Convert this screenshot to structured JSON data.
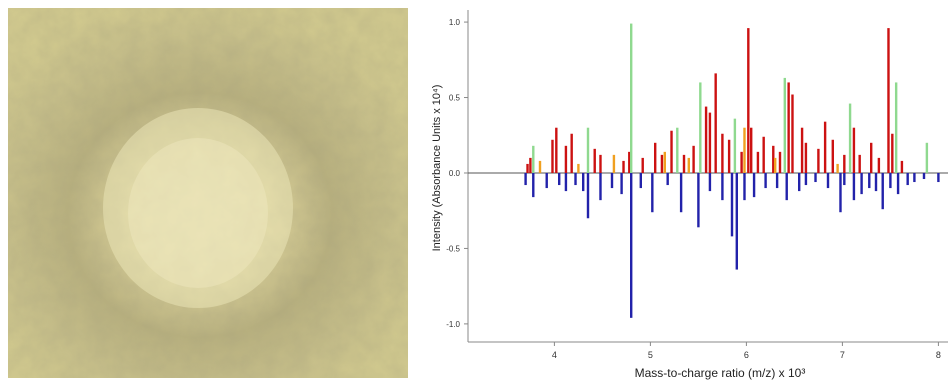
{
  "photo": {
    "description_icon": "microscopy-photo"
  },
  "chart_data": {
    "type": "bar",
    "xlabel": "Mass-to-charge ratio (m/z) x 10³",
    "ylabel": "Intensity (Absorbance Units x 10⁴)",
    "xlim": [
      3.1,
      8.1
    ],
    "ylim": [
      -1.12,
      1.08
    ],
    "xticks": [
      "4",
      "5",
      "6",
      "7",
      "8"
    ],
    "yticks": [
      "1.0",
      "0.5",
      "0.0",
      "-0.5",
      "-1.0"
    ],
    "colors": {
      "red": "#cc1111",
      "green": "#8fd98f",
      "orange": "#f0a020",
      "blue": "#2222aa"
    },
    "series": [
      {
        "color": "red",
        "x": [
          3.72,
          3.75,
          3.98,
          4.02,
          4.12,
          4.18,
          4.42,
          4.48,
          4.72,
          4.78,
          4.92,
          5.05,
          5.12,
          5.22,
          5.35,
          5.45,
          5.58,
          5.62,
          5.68,
          5.75,
          5.82,
          5.95,
          6.02,
          6.05,
          6.12,
          6.18,
          6.28,
          6.35,
          6.44,
          6.48,
          6.58,
          6.62,
          6.75,
          6.82,
          6.9,
          7.02,
          7.12,
          7.18,
          7.3,
          7.38,
          7.48,
          7.52,
          7.62
        ],
        "values": [
          0.06,
          0.1,
          0.22,
          0.3,
          0.18,
          0.26,
          0.16,
          0.12,
          0.08,
          0.14,
          0.1,
          0.2,
          0.12,
          0.28,
          0.12,
          0.18,
          0.44,
          0.4,
          0.66,
          0.26,
          0.22,
          0.14,
          0.96,
          0.3,
          0.14,
          0.24,
          0.18,
          0.14,
          0.6,
          0.52,
          0.3,
          0.2,
          0.16,
          0.34,
          0.22,
          0.12,
          0.3,
          0.12,
          0.2,
          0.1,
          0.96,
          0.26,
          0.08
        ]
      },
      {
        "color": "green",
        "x": [
          3.78,
          4.35,
          4.8,
          5.28,
          5.52,
          5.88,
          6.4,
          7.08,
          7.56,
          7.88
        ],
        "values": [
          0.18,
          0.3,
          0.99,
          0.3,
          0.6,
          0.36,
          0.63,
          0.46,
          0.6,
          0.2
        ]
      },
      {
        "color": "orange",
        "x": [
          3.85,
          4.25,
          4.62,
          5.15,
          5.4,
          5.98,
          6.3,
          6.95
        ],
        "values": [
          0.08,
          0.06,
          0.12,
          0.14,
          0.1,
          0.3,
          0.1,
          0.06
        ]
      },
      {
        "color": "blue",
        "x": [
          3.7,
          3.78,
          3.92,
          4.05,
          4.12,
          4.22,
          4.3,
          4.35,
          4.48,
          4.6,
          4.7,
          4.8,
          4.9,
          5.02,
          5.18,
          5.32,
          5.5,
          5.62,
          5.75,
          5.85,
          5.9,
          5.98,
          6.08,
          6.2,
          6.32,
          6.42,
          6.55,
          6.62,
          6.72,
          6.85,
          6.98,
          7.02,
          7.12,
          7.2,
          7.28,
          7.35,
          7.42,
          7.5,
          7.58,
          7.68,
          7.75,
          7.85,
          8.0
        ],
        "values": [
          -0.08,
          -0.16,
          -0.1,
          -0.08,
          -0.12,
          -0.08,
          -0.12,
          -0.3,
          -0.18,
          -0.1,
          -0.14,
          -0.96,
          -0.1,
          -0.26,
          -0.08,
          -0.26,
          -0.36,
          -0.12,
          -0.18,
          -0.42,
          -0.64,
          -0.18,
          -0.16,
          -0.1,
          -0.1,
          -0.18,
          -0.12,
          -0.08,
          -0.06,
          -0.1,
          -0.26,
          -0.08,
          -0.18,
          -0.14,
          -0.1,
          -0.12,
          -0.24,
          -0.1,
          -0.14,
          -0.08,
          -0.06,
          -0.04,
          -0.06
        ]
      }
    ]
  }
}
